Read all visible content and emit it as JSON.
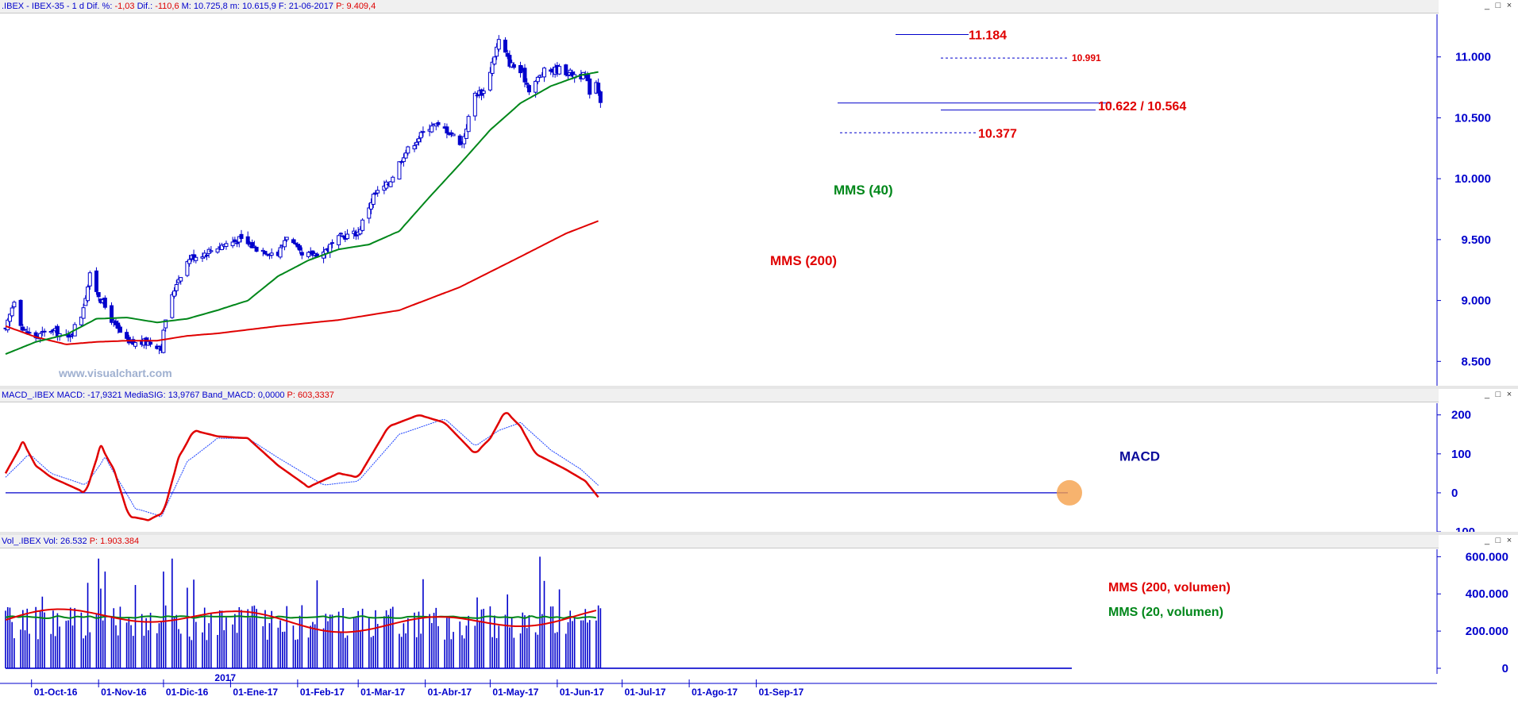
{
  "price_panel": {
    "title_parts": [
      {
        "text": ".IBEX - IBEX-35 -  1 d  Dif. %: ",
        "color": "blue"
      },
      {
        "text": "-1,03",
        "color": "red"
      },
      {
        "text": "  Dif.: ",
        "color": "blue"
      },
      {
        "text": "-110,6",
        "color": "red"
      },
      {
        "text": "  M: 10.725,8  m: 10.615,9  F: 21-06-2017  ",
        "color": "blue"
      },
      {
        "text": "P: 9.409,4",
        "color": "red"
      }
    ],
    "watermark": "www.visualchart.com"
  },
  "macd_panel": {
    "title_parts": [
      {
        "text": "MACD_.IBEX  MACD: -17,9321  MediaSIG: 13,9767  Band_MACD: 0,0000  ",
        "color": "blue"
      },
      {
        "text": "P: 603,3337",
        "color": "red"
      }
    ]
  },
  "volume_panel": {
    "title_parts": [
      {
        "text": "Vol_.IBEX  Vol: 26.532  ",
        "color": "blue"
      },
      {
        "text": "P: 1.903.384",
        "color": "red"
      }
    ]
  },
  "window_buttons": [
    "_",
    "□",
    "×"
  ],
  "x_axis": {
    "year_label": "2017",
    "labels": [
      "01-Oct-16",
      "01-Nov-16",
      "01-Dic-16",
      "01-Ene-17",
      "01-Feb-17",
      "01-Mar-17",
      "01-Abr-17",
      "01-May-17",
      "01-Jun-17",
      "01-Jul-17",
      "01-Ago-17",
      "01-Sep-17"
    ]
  },
  "colors": {
    "axis": "#0000cc",
    "candle": "#0000cc",
    "mms40": "#00871a",
    "mms200": "#e00000",
    "macd": "#e00000",
    "signal": "#1a40ff",
    "annotation_red": "#e00000",
    "annotation_green": "#00871a",
    "annotation_blue": "#0a0a9a",
    "highlight": "#f5a04a"
  },
  "chart_data": [
    {
      "type": "candlestick",
      "title": "IBEX-35",
      "ylim": [
        8300,
        11350
      ],
      "yticks": [
        8500,
        9000,
        9500,
        10000,
        10500,
        11000
      ],
      "ytick_labels": [
        "8.500",
        "9.000",
        "9.500",
        "10.000",
        "10.500",
        "11.000"
      ],
      "close_trajectory": [
        [
          "2016-09-19",
          8750
        ],
        [
          "2016-09-23",
          9010
        ],
        [
          "2016-09-27",
          8760
        ],
        [
          "2016-10-03",
          8700
        ],
        [
          "2016-10-10",
          8760
        ],
        [
          "2016-10-18",
          8690
        ],
        [
          "2016-10-24",
          8880
        ],
        [
          "2016-10-28",
          9200
        ],
        [
          "2016-11-02",
          9010
        ],
        [
          "2016-11-09",
          8780
        ],
        [
          "2016-11-15",
          8640
        ],
        [
          "2016-11-24",
          8660
        ],
        [
          "2016-11-30",
          8620
        ],
        [
          "2016-12-02",
          8850
        ],
        [
          "2016-12-07",
          9150
        ],
        [
          "2016-12-13",
          9350
        ],
        [
          "2016-12-20",
          9390
        ],
        [
          "2016-12-27",
          9450
        ],
        [
          "2017-01-05",
          9500
        ],
        [
          "2017-01-13",
          9430
        ],
        [
          "2017-01-23",
          9380
        ],
        [
          "2017-01-27",
          9540
        ],
        [
          "2017-02-03",
          9360
        ],
        [
          "2017-02-13",
          9400
        ],
        [
          "2017-02-21",
          9520
        ],
        [
          "2017-03-01",
          9560
        ],
        [
          "2017-03-08",
          9860
        ],
        [
          "2017-03-15",
          9960
        ],
        [
          "2017-03-22",
          10200
        ],
        [
          "2017-03-29",
          10340
        ],
        [
          "2017-04-04",
          10450
        ],
        [
          "2017-04-11",
          10400
        ],
        [
          "2017-04-18",
          10290
        ],
        [
          "2017-04-24",
          10700
        ],
        [
          "2017-04-28",
          10715
        ],
        [
          "2017-05-05",
          11135
        ],
        [
          "2017-05-10",
          10950
        ],
        [
          "2017-05-16",
          10860
        ],
        [
          "2017-05-19",
          10740
        ],
        [
          "2017-05-26",
          10880
        ],
        [
          "2017-06-02",
          10900
        ],
        [
          "2017-06-08",
          10860
        ],
        [
          "2017-06-14",
          10840
        ],
        [
          "2017-06-16",
          10720
        ],
        [
          "2017-06-19",
          10800
        ],
        [
          "2017-06-21",
          10650
        ]
      ],
      "mms40": [
        [
          "2016-09-19",
          8560
        ],
        [
          "2016-10-03",
          8660
        ],
        [
          "2016-10-17",
          8720
        ],
        [
          "2016-10-31",
          8850
        ],
        [
          "2016-11-14",
          8860
        ],
        [
          "2016-11-28",
          8820
        ],
        [
          "2016-12-12",
          8850
        ],
        [
          "2016-12-26",
          8920
        ],
        [
          "2017-01-09",
          9000
        ],
        [
          "2017-01-23",
          9200
        ],
        [
          "2017-02-06",
          9330
        ],
        [
          "2017-02-20",
          9420
        ],
        [
          "2017-03-06",
          9460
        ],
        [
          "2017-03-20",
          9570
        ],
        [
          "2017-04-03",
          9850
        ],
        [
          "2017-04-17",
          10120
        ],
        [
          "2017-05-01",
          10400
        ],
        [
          "2017-05-15",
          10620
        ],
        [
          "2017-05-29",
          10760
        ],
        [
          "2017-06-12",
          10850
        ],
        [
          "2017-06-21",
          10880
        ]
      ],
      "mms200": [
        [
          "2016-09-19",
          8790
        ],
        [
          "2016-10-03",
          8700
        ],
        [
          "2016-10-17",
          8640
        ],
        [
          "2016-10-31",
          8660
        ],
        [
          "2016-11-14",
          8670
        ],
        [
          "2016-11-28",
          8670
        ],
        [
          "2016-12-12",
          8710
        ],
        [
          "2016-12-26",
          8730
        ],
        [
          "2017-01-23",
          8790
        ],
        [
          "2017-02-20",
          8840
        ],
        [
          "2017-03-20",
          8920
        ],
        [
          "2017-04-17",
          9110
        ],
        [
          "2017-05-15",
          9360
        ],
        [
          "2017-06-05",
          9550
        ],
        [
          "2017-06-21",
          9660
        ]
      ],
      "levels": [
        {
          "value": 11184,
          "label": "11.184",
          "style": "solid"
        },
        {
          "value": 10991,
          "label": "10.991",
          "style": "dashed"
        },
        {
          "value": 10622,
          "label": "10.622 / 10.564",
          "style": "solid"
        },
        {
          "value": 10564,
          "label": "",
          "style": "solid"
        },
        {
          "value": 10377,
          "label": "10.377",
          "style": "dashed"
        }
      ],
      "annotations": [
        "MMS (40)",
        "MMS (200)"
      ]
    },
    {
      "type": "line",
      "title": "MACD",
      "ylim": [
        -100,
        230
      ],
      "yticks": [
        -100,
        0,
        100,
        200
      ],
      "ytick_labels": [
        "-100",
        "0",
        "100",
        "200"
      ],
      "macd": [
        [
          "2016-09-19",
          50
        ],
        [
          "2016-09-27",
          130
        ],
        [
          "2016-10-03",
          70
        ],
        [
          "2016-10-10",
          40
        ],
        [
          "2016-10-18",
          20
        ],
        [
          "2016-10-26",
          0
        ],
        [
          "2016-11-02",
          120
        ],
        [
          "2016-11-08",
          60
        ],
        [
          "2016-11-15",
          -60
        ],
        [
          "2016-11-24",
          -70
        ],
        [
          "2016-12-01",
          -50
        ],
        [
          "2016-12-08",
          90
        ],
        [
          "2016-12-15",
          160
        ],
        [
          "2016-12-26",
          145
        ],
        [
          "2017-01-09",
          140
        ],
        [
          "2017-01-23",
          70
        ],
        [
          "2017-02-06",
          15
        ],
        [
          "2017-02-20",
          50
        ],
        [
          "2017-03-01",
          40
        ],
        [
          "2017-03-15",
          170
        ],
        [
          "2017-03-29",
          200
        ],
        [
          "2017-04-10",
          180
        ],
        [
          "2017-04-24",
          100
        ],
        [
          "2017-05-01",
          140
        ],
        [
          "2017-05-08",
          210
        ],
        [
          "2017-05-15",
          170
        ],
        [
          "2017-05-22",
          100
        ],
        [
          "2017-06-05",
          60
        ],
        [
          "2017-06-14",
          30
        ],
        [
          "2017-06-21",
          -18
        ]
      ],
      "signal": [
        [
          "2016-09-19",
          40
        ],
        [
          "2016-09-30",
          100
        ],
        [
          "2016-10-10",
          50
        ],
        [
          "2016-10-26",
          20
        ],
        [
          "2016-11-04",
          90
        ],
        [
          "2016-11-18",
          -40
        ],
        [
          "2016-11-30",
          -60
        ],
        [
          "2016-12-12",
          80
        ],
        [
          "2016-12-26",
          140
        ],
        [
          "2017-01-09",
          140
        ],
        [
          "2017-01-23",
          90
        ],
        [
          "2017-02-13",
          20
        ],
        [
          "2017-03-01",
          30
        ],
        [
          "2017-03-20",
          150
        ],
        [
          "2017-04-10",
          190
        ],
        [
          "2017-04-24",
          120
        ],
        [
          "2017-05-05",
          160
        ],
        [
          "2017-05-15",
          180
        ],
        [
          "2017-05-29",
          110
        ],
        [
          "2017-06-12",
          60
        ],
        [
          "2017-06-21",
          14
        ]
      ],
      "annotations": [
        "MACD"
      ]
    },
    {
      "type": "bar",
      "title": "Volumen",
      "ylim": [
        -30000,
        640000
      ],
      "yticks": [
        0,
        200000,
        400000,
        600000
      ],
      "ytick_labels": [
        "0",
        "200.000",
        "400.000",
        "600.000"
      ],
      "volume_spikes": [
        [
          "2016-11-01",
          590000
        ],
        [
          "2016-11-04",
          520000
        ],
        [
          "2016-12-01",
          520000
        ],
        [
          "2016-12-05",
          590000
        ],
        [
          "2017-05-24",
          600000
        ],
        [
          "2017-05-26",
          470000
        ]
      ],
      "mms200_volumen": 280000,
      "mms20_volumen": 275000,
      "annotations": [
        "MMS (200, volumen)",
        "MMS (20, volumen)"
      ]
    }
  ]
}
